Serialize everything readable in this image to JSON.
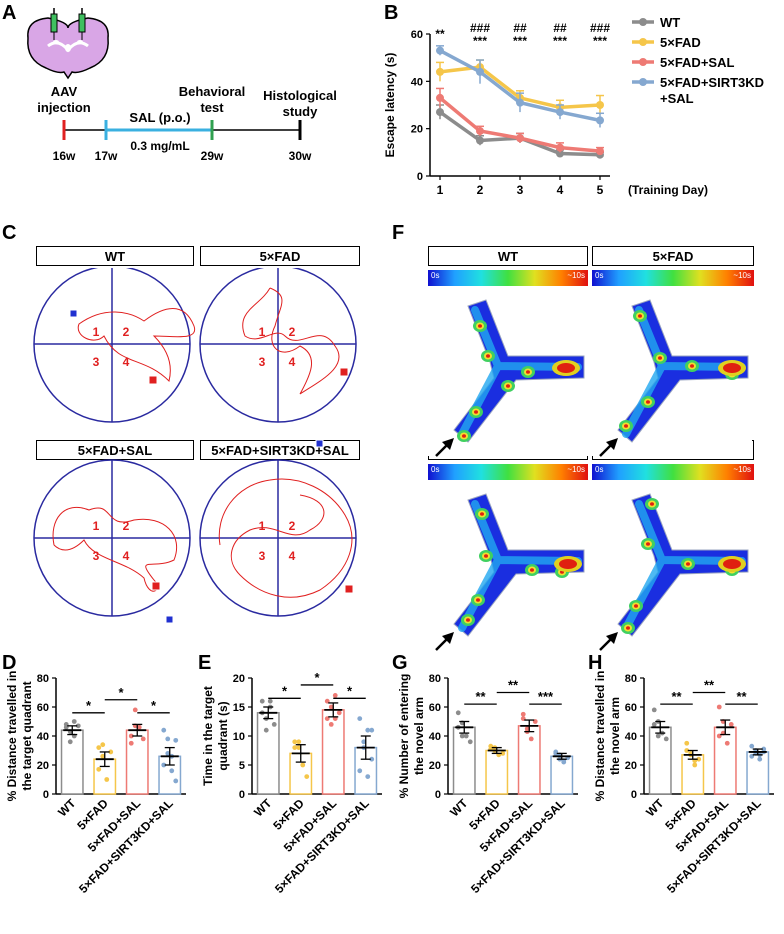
{
  "panels": {
    "A": "A",
    "B": "B",
    "C": "C",
    "D": "D",
    "E": "E",
    "F": "F",
    "G": "G",
    "H": "H"
  },
  "timeline": {
    "labels": [
      "AAV injection",
      "SAL (p.o.)",
      "0.3 mg/mL",
      "Behavioral test",
      "Histological study"
    ],
    "weeks": [
      "16w",
      "17w",
      "29w",
      "30w"
    ],
    "colors": {
      "aav": "#e02020",
      "sal": "#3ab0e0",
      "behav": "#30a050",
      "histo": "#000000"
    }
  },
  "chart_data": [
    {
      "type": "line",
      "id": "B",
      "x": [
        1,
        2,
        3,
        4,
        5
      ],
      "xlabel": "(Training Day)",
      "ylabel": "Escape latency (s)",
      "ylim": [
        0,
        60
      ],
      "yticks": [
        0,
        20,
        40,
        60
      ],
      "series": [
        {
          "name": "WT",
          "color": "#8c8c8c",
          "values": [
            27,
            15,
            16,
            9.5,
            9
          ],
          "err": [
            3,
            2,
            2,
            1.5,
            1
          ]
        },
        {
          "name": "5×FAD",
          "color": "#f5c64a",
          "values": [
            44,
            46,
            33,
            29,
            30
          ],
          "err": [
            4,
            3,
            3,
            3,
            4
          ]
        },
        {
          "name": "5×FAD+SAL",
          "color": "#ee7a74",
          "values": [
            33,
            19,
            16,
            12,
            10.5
          ],
          "err": [
            4,
            2,
            2,
            2,
            1.5
          ]
        },
        {
          "name": "5×FAD+SIRT3KD+SAL",
          "color": "#85a8d0",
          "values": [
            53,
            44,
            31,
            27,
            23.5
          ],
          "err": [
            2,
            5,
            4,
            3,
            3
          ]
        }
      ],
      "legend": [
        "WT",
        "5×FAD",
        "5×FAD+SAL",
        "5×FAD+SIRT3KD",
        "+SAL"
      ],
      "annotations": [
        {
          "x": 1,
          "lines": [
            "**"
          ]
        },
        {
          "x": 2,
          "lines": [
            "###",
            "***"
          ]
        },
        {
          "x": 3,
          "lines": [
            "##",
            "***"
          ]
        },
        {
          "x": 4,
          "lines": [
            "##",
            "***"
          ]
        },
        {
          "x": 5,
          "lines": [
            "###",
            "***"
          ]
        }
      ]
    },
    {
      "type": "bar",
      "id": "D",
      "categories": [
        "WT",
        "5×FAD",
        "5×FAD+SAL",
        "5×FAD+SIRT3KD+SAL"
      ],
      "values": [
        44,
        24,
        44,
        26
      ],
      "err": [
        3,
        5,
        4,
        6
      ],
      "ylabel": [
        "% Distance travelled in",
        "the target quadrant"
      ],
      "ylim": [
        0,
        80
      ],
      "yticks": [
        0,
        20,
        40,
        60,
        80
      ],
      "points": [
        [
          48,
          43,
          40,
          47,
          46,
          36,
          50
        ],
        [
          32,
          26,
          10,
          29,
          17,
          34
        ],
        [
          40,
          58,
          46,
          38,
          35,
          47
        ],
        [
          44,
          38,
          26,
          9,
          20,
          28,
          16,
          37
        ]
      ],
      "sig": [
        {
          "from": 0,
          "to": 1,
          "label": "*",
          "y": 56
        },
        {
          "from": 1,
          "to": 2,
          "label": "*",
          "y": 65
        },
        {
          "from": 2,
          "to": 3,
          "label": "*",
          "y": 56
        }
      ]
    },
    {
      "type": "bar",
      "id": "E",
      "categories": [
        "WT",
        "5×FAD",
        "5×FAD+SAL",
        "5×FAD+SIRT3KD+SAL"
      ],
      "values": [
        14,
        7,
        14.5,
        8
      ],
      "err": [
        1,
        1.5,
        1.2,
        2
      ],
      "ylabel": [
        "Time in the target",
        "quadrant (s)"
      ],
      "ylim": [
        0,
        20
      ],
      "yticks": [
        0,
        5,
        10,
        15,
        20
      ],
      "points": [
        [
          16,
          13,
          15,
          12,
          14,
          11,
          16
        ],
        [
          9,
          8,
          5,
          3,
          8,
          9
        ],
        [
          16,
          12,
          17,
          14,
          13,
          15,
          13
        ],
        [
          13,
          9,
          11,
          6,
          4,
          8,
          3,
          11
        ]
      ],
      "sig": [
        {
          "from": 0,
          "to": 1,
          "label": "*",
          "y": 16.5
        },
        {
          "from": 1,
          "to": 2,
          "label": "*",
          "y": 18.8
        },
        {
          "from": 2,
          "to": 3,
          "label": "*",
          "y": 16.5
        }
      ]
    },
    {
      "type": "bar",
      "id": "G",
      "categories": [
        "WT",
        "5×FAD",
        "5×FAD+SAL",
        "5×FAD+SIRT3KD+SAL"
      ],
      "values": [
        46,
        30,
        47,
        26
      ],
      "err": [
        4,
        2,
        4,
        2
      ],
      "ylabel": [
        "% Number of entering",
        "the novel arm"
      ],
      "ylim": [
        0,
        80
      ],
      "yticks": [
        0,
        20,
        40,
        60,
        80
      ],
      "points": [
        [
          56,
          49,
          40,
          36,
          46,
          40
        ],
        [
          33,
          30,
          27,
          28,
          31,
          32
        ],
        [
          55,
          45,
          38,
          50,
          52,
          43
        ],
        [
          28,
          24,
          22,
          25,
          29,
          27,
          23
        ]
      ],
      "sig": [
        {
          "from": 0,
          "to": 1,
          "label": "**",
          "y": 62
        },
        {
          "from": 1,
          "to": 2,
          "label": "**",
          "y": 70
        },
        {
          "from": 2,
          "to": 3,
          "label": "***",
          "y": 62
        }
      ]
    },
    {
      "type": "bar",
      "id": "H",
      "categories": [
        "WT",
        "5×FAD",
        "5×FAD+SAL",
        "5×FAD+SIRT3KD+SAL"
      ],
      "values": [
        46,
        27,
        46,
        29
      ],
      "err": [
        4,
        3,
        5,
        2
      ],
      "ylabel": [
        "% Distance travelled in",
        "the novel arm"
      ],
      "ylim": [
        0,
        80
      ],
      "yticks": [
        0,
        20,
        40,
        60,
        80
      ],
      "points": [
        [
          58,
          50,
          42,
          38,
          48,
          40
        ],
        [
          35,
          27,
          20,
          24,
          30,
          28,
          23
        ],
        [
          60,
          50,
          35,
          48,
          40,
          42
        ],
        [
          33,
          28,
          24,
          31,
          26,
          30,
          27,
          29
        ]
      ],
      "sig": [
        {
          "from": 0,
          "to": 1,
          "label": "**",
          "y": 62
        },
        {
          "from": 1,
          "to": 2,
          "label": "**",
          "y": 70
        },
        {
          "from": 2,
          "to": 3,
          "label": "**",
          "y": 62
        }
      ]
    }
  ],
  "watermaze": {
    "groups": [
      "WT",
      "5×FAD",
      "5×FAD+SAL",
      "5×FAD+SIRT3KD+SAL"
    ],
    "quadrants": [
      "1",
      "2",
      "3",
      "4"
    ]
  },
  "ymaze": {
    "groups": [
      "WT",
      "5×FAD",
      "5×FAD+SAL",
      "5×FAD+SIRT3KD+SAL"
    ],
    "scale_min": "0s",
    "scale_max": "~10s"
  },
  "colors": {
    "WT": "#8c8c8c",
    "FAD": "#f5c64a",
    "SAL": "#ee7a74",
    "KD": "#85a8d0"
  }
}
